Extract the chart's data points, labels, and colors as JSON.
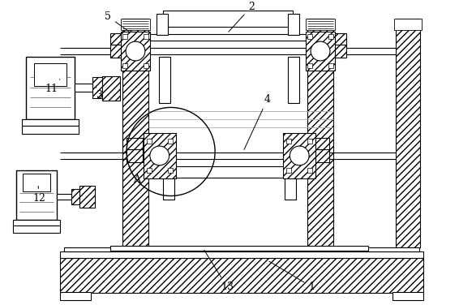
{
  "bg_color": "#ffffff",
  "lw": 0.8,
  "fig_width": 5.66,
  "fig_height": 3.76,
  "dpi": 100
}
